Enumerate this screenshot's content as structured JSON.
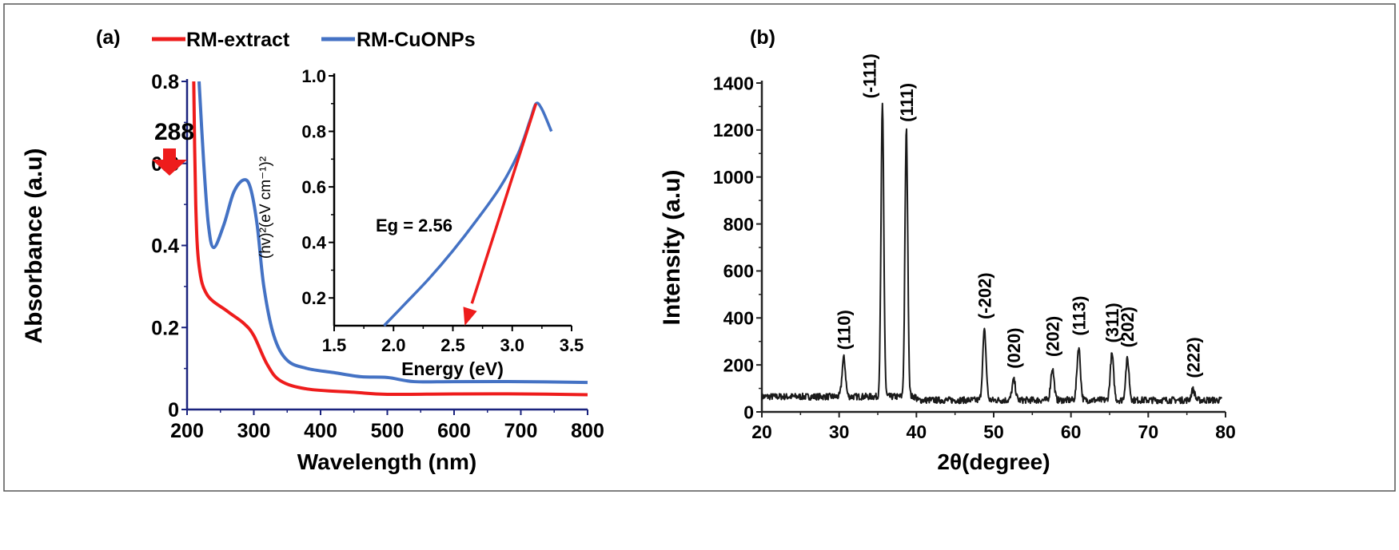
{
  "chart_data": [
    {
      "type": "line",
      "panel_label": "(a)",
      "xlabel": "Wavelength (nm)",
      "ylabel": "Absorbance (a.u)",
      "xlim": [
        200,
        800
      ],
      "ylim": [
        0,
        0.8
      ],
      "xticks": [
        "200",
        "300",
        "400",
        "500",
        "600",
        "700",
        "800"
      ],
      "yticks": [
        "0",
        "0.2",
        "0.4",
        "0.6",
        "0.8"
      ],
      "legend_position": "top",
      "annotation": "288",
      "series": [
        {
          "name": "RM-extract",
          "color": "#ee1c1c",
          "x": [
            210,
            213,
            218,
            230,
            260,
            285,
            300,
            320,
            340,
            380,
            450,
            500,
            600,
            700,
            800
          ],
          "y": [
            0.8,
            0.5,
            0.35,
            0.28,
            0.24,
            0.21,
            0.18,
            0.11,
            0.07,
            0.05,
            0.042,
            0.037,
            0.038,
            0.038,
            0.036
          ]
        },
        {
          "name": "RM-CuONPs",
          "color": "#4472c4",
          "x": [
            218,
            225,
            232,
            240,
            255,
            270,
            285,
            295,
            305,
            315,
            330,
            350,
            380,
            420,
            460,
            500,
            540,
            600,
            700,
            800
          ],
          "y": [
            0.8,
            0.6,
            0.45,
            0.395,
            0.45,
            0.53,
            0.56,
            0.54,
            0.45,
            0.3,
            0.18,
            0.12,
            0.1,
            0.09,
            0.08,
            0.078,
            0.068,
            0.068,
            0.068,
            0.066
          ]
        }
      ],
      "inset": {
        "type": "line",
        "xlabel": "Energy (eV)",
        "ylabel": "(hv)²(eV cm⁻¹)²",
        "xlim": [
          1.5,
          3.5
        ],
        "ylim": [
          0.1,
          1.0
        ],
        "xticks": [
          "1.5",
          "2.0",
          "2.5",
          "3.0",
          "3.5"
        ],
        "yticks": [
          "0.2",
          "0.4",
          "0.6",
          "0.8",
          "1.0"
        ],
        "annotation": "Eg = 2.56",
        "series": [
          {
            "color": "#4472c4",
            "x": [
              1.92,
              2.1,
              2.3,
              2.5,
              2.7,
              2.9,
              3.05,
              3.15,
              3.2,
              3.25,
              3.33
            ],
            "y": [
              0.1,
              0.18,
              0.27,
              0.37,
              0.48,
              0.6,
              0.72,
              0.84,
              0.9,
              0.88,
              0.8
            ]
          }
        ],
        "tangent": {
          "color": "#ee1c1c",
          "x": [
            3.2,
            2.6
          ],
          "y": [
            0.9,
            0.1
          ]
        }
      }
    },
    {
      "type": "line",
      "panel_label": "(b)",
      "xlabel": "2θ(degree)",
      "ylabel": "Intensity (a.u)",
      "xlim": [
        20,
        80
      ],
      "ylim": [
        0,
        1400
      ],
      "xticks": [
        "20",
        "30",
        "40",
        "50",
        "60",
        "70",
        "80"
      ],
      "yticks": [
        "0",
        "200",
        "400",
        "600",
        "800",
        "1000",
        "1200",
        "1400"
      ],
      "color": "#1a1a1a",
      "baseline": 65,
      "peaks": [
        {
          "x": 30.6,
          "y": 230,
          "label": "(110)"
        },
        {
          "x": 35.6,
          "y": 1300,
          "label": "(-111)"
        },
        {
          "x": 38.7,
          "y": 1200,
          "label": "(111)"
        },
        {
          "x": 48.8,
          "y": 360,
          "label": "(-202)"
        },
        {
          "x": 52.6,
          "y": 150,
          "label": "(020)"
        },
        {
          "x": 57.6,
          "y": 200,
          "label": "(202)"
        },
        {
          "x": 61.0,
          "y": 290,
          "label": "(113)"
        },
        {
          "x": 65.3,
          "y": 260,
          "label": "(311)"
        },
        {
          "x": 67.3,
          "y": 240,
          "label": "(202)"
        },
        {
          "x": 75.8,
          "y": 110,
          "label": "(222)"
        }
      ]
    }
  ]
}
